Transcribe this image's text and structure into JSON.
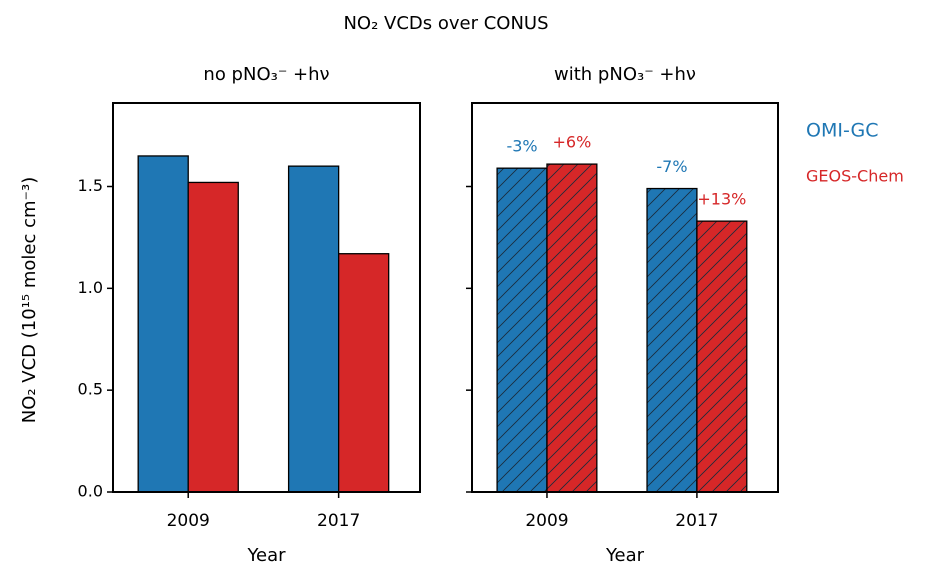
{
  "title": "NO₂ VCDs over CONUS",
  "ylabel": "NO₂ VCD (10¹⁵ molec cm⁻³)",
  "legend": "right",
  "chart_data": [
    {
      "type": "bar",
      "title": "no pNO₃⁻ +hν",
      "xlabel": "Year",
      "categories": [
        "2009",
        "2017"
      ],
      "series": [
        {
          "name": "OMI-GC",
          "color": "#1f77b4",
          "values": [
            1.65,
            1.6
          ]
        },
        {
          "name": "GEOS-Chem",
          "color": "#d62728",
          "values": [
            1.52,
            1.17
          ]
        }
      ],
      "ylim": [
        0,
        1.91
      ],
      "yticks": [
        {
          "value": 0,
          "label": "0.0"
        },
        0.5,
        {
          "value": 1,
          "label": "1.0"
        },
        1.5
      ]
    },
    {
      "type": "bar",
      "title": "with pNO₃⁻ +hν",
      "xlabel": "Year",
      "categories": [
        "2009",
        "2017"
      ],
      "hatch": true,
      "series": [
        {
          "color": "#1f77b4",
          "values": [
            1.59,
            1.49
          ],
          "annotations": [
            "-3%",
            "-7%"
          ]
        },
        {
          "color": "#d62728",
          "values": [
            1.61,
            1.33
          ],
          "annotations": [
            "+6%",
            "+13%"
          ]
        }
      ],
      "ylim": [
        0,
        1.91
      ],
      "yticks": [
        0,
        0.5,
        1,
        1.5
      ]
    }
  ]
}
